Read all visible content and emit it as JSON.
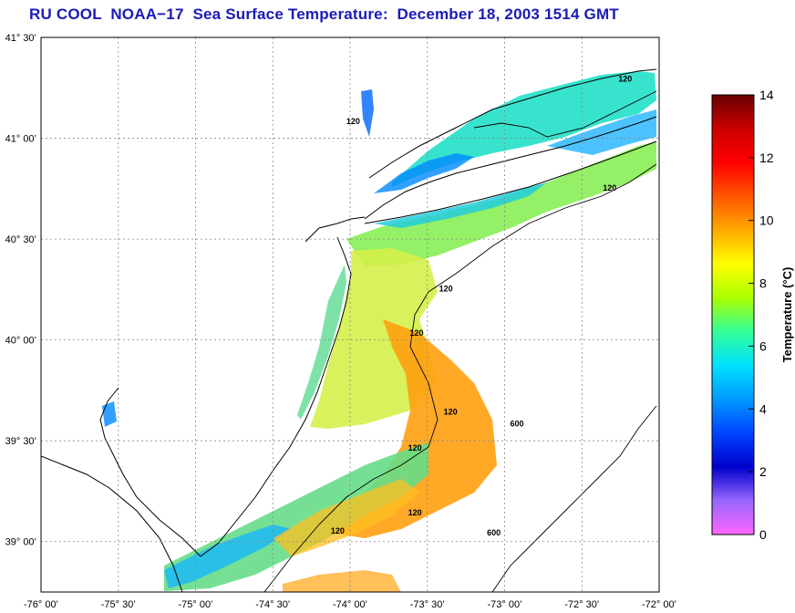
{
  "title": "RU COOL  NOAA−17  Sea Surface Temperature:  December 18, 2003 1514 GMT",
  "map": {
    "lon_range": [
      -76.0,
      -72.0
    ],
    "lat_range": [
      38.75,
      41.5
    ],
    "lon_ticks": [
      {
        "value": -76.0,
        "label": "-76° 00’"
      },
      {
        "value": -75.5,
        "label": "-75° 30’"
      },
      {
        "value": -75.0,
        "label": "-75° 00’"
      },
      {
        "value": -74.5,
        "label": "-74° 30’"
      },
      {
        "value": -74.0,
        "label": "-74° 00’"
      },
      {
        "value": -73.5,
        "label": "-73° 30’"
      },
      {
        "value": -73.0,
        "label": "-73° 00’"
      },
      {
        "value": -72.5,
        "label": "-72° 30’"
      },
      {
        "value": -72.0,
        "label": "-72° 00’"
      }
    ],
    "lat_ticks": [
      {
        "value": 41.5,
        "label": "41° 30’"
      },
      {
        "value": 41.0,
        "label": "41° 00’"
      },
      {
        "value": 40.5,
        "label": "40° 30’"
      },
      {
        "value": 40.0,
        "label": "40° 00’"
      },
      {
        "value": 39.5,
        "label": "39° 30’"
      },
      {
        "value": 39.0,
        "label": "39° 00’"
      }
    ],
    "grid": true,
    "contour_labels": [
      {
        "text": "120",
        "lon": -72.22,
        "lat": 41.28
      },
      {
        "text": "120",
        "lon": -73.98,
        "lat": 41.07
      },
      {
        "text": "120",
        "lon": -72.32,
        "lat": 40.74
      },
      {
        "text": "120",
        "lon": -73.38,
        "lat": 40.24
      },
      {
        "text": "120",
        "lon": -73.57,
        "lat": 40.02
      },
      {
        "text": "120",
        "lon": -73.35,
        "lat": 39.63
      },
      {
        "text": "120",
        "lon": -73.58,
        "lat": 39.45
      },
      {
        "text": "120",
        "lon": -73.58,
        "lat": 39.13
      },
      {
        "text": "120",
        "lon": -74.08,
        "lat": 39.04
      },
      {
        "text": "600",
        "lon": -72.92,
        "lat": 39.57
      },
      {
        "text": "600",
        "lon": -73.07,
        "lat": 39.03
      }
    ]
  },
  "colorbar": {
    "label": "Temperature (°C)",
    "min": 0,
    "max": 14,
    "ticks": [
      "0",
      "2",
      "4",
      "6",
      "8",
      "10",
      "12",
      "14"
    ],
    "tick_values": [
      0,
      2,
      4,
      6,
      8,
      10,
      12,
      14
    ],
    "colors": [
      "#ff66ff",
      "#9966ff",
      "#0000cc",
      "#0044ff",
      "#0099ff",
      "#00e0ff",
      "#33ff99",
      "#aaff00",
      "#ffff00",
      "#ffaa00",
      "#ff5500",
      "#ff0000",
      "#cc0000",
      "#660000"
    ]
  }
}
